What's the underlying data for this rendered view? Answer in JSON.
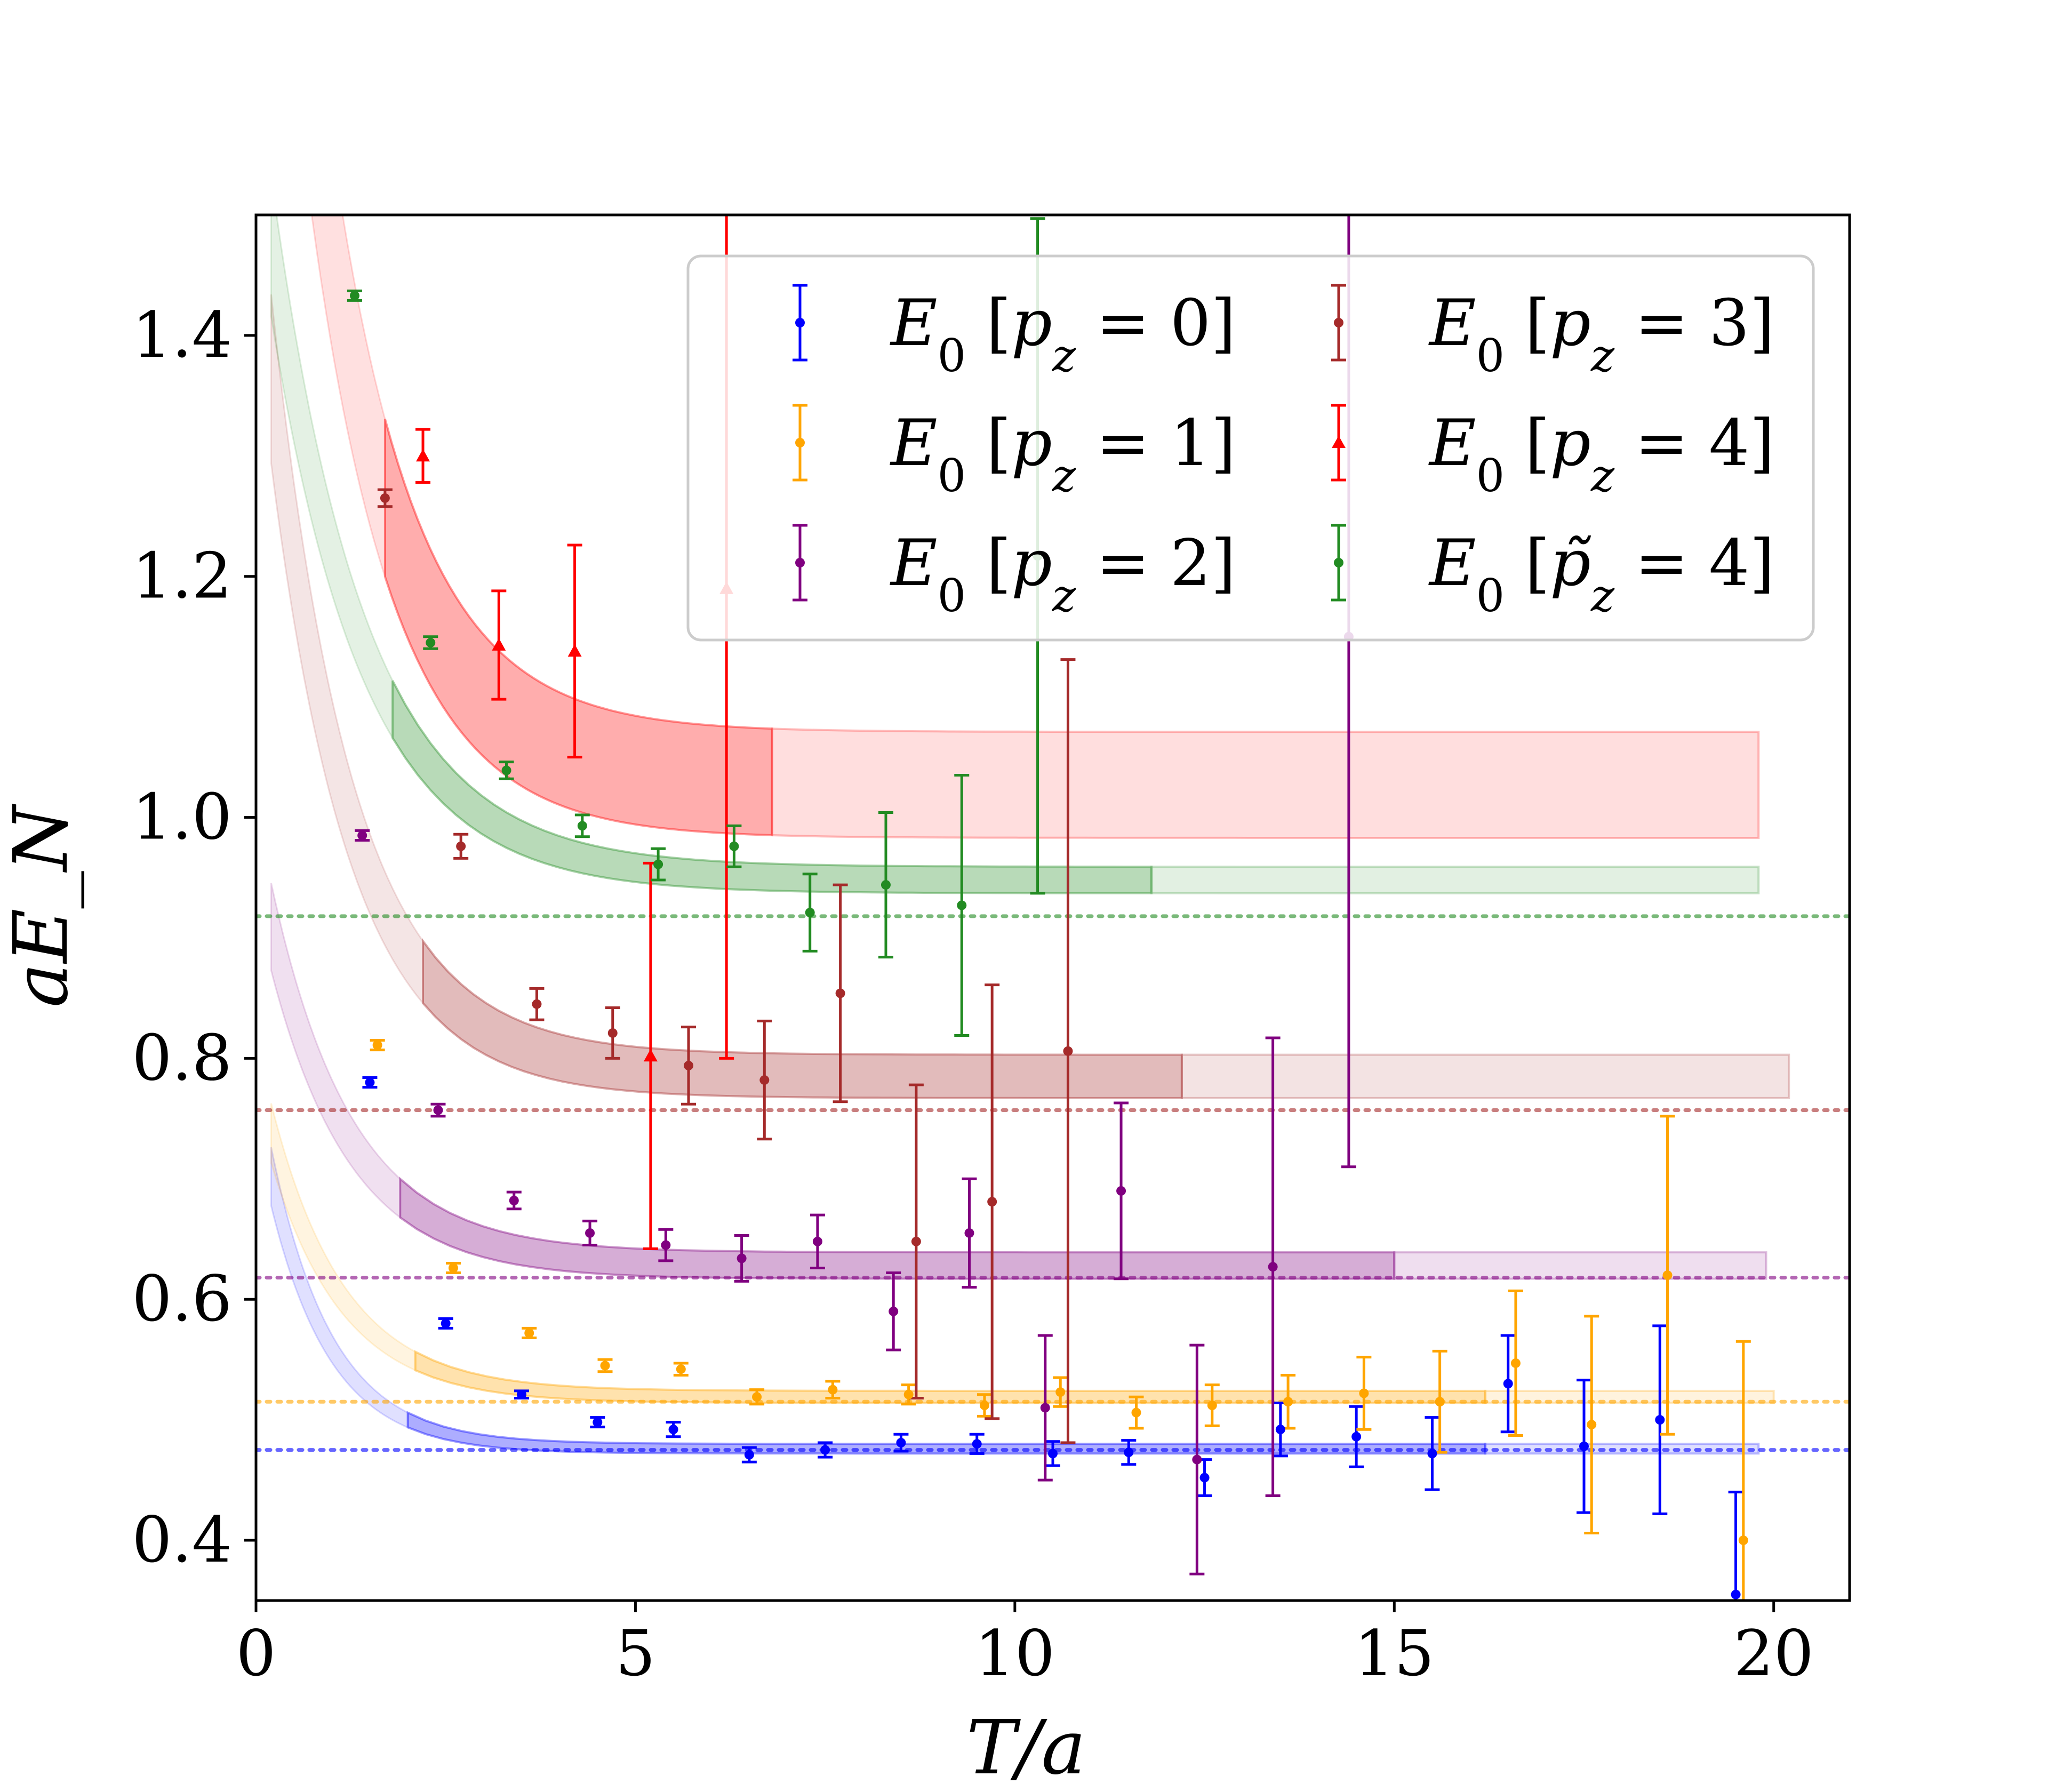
{
  "chart_data": {
    "type": "scatter",
    "title": "",
    "xlabel": "T/a",
    "ylabel": "aE_N",
    "xlim": [
      0,
      21
    ],
    "ylim": [
      0.35,
      1.5
    ],
    "xticks": [
      0,
      5,
      10,
      15,
      20
    ],
    "yticks": [
      0.4,
      0.6,
      0.8,
      1.0,
      1.2,
      1.4
    ],
    "xtick_labels": [
      "0",
      "5",
      "10",
      "15",
      "20"
    ],
    "ytick_labels": [
      "0.4",
      "0.6",
      "0.8",
      "1.0",
      "1.2",
      "1.4"
    ],
    "legend_position": "top-right",
    "legend_columns": 2,
    "series": [
      {
        "name": "pz0",
        "label_base": "E",
        "label_sub": "0",
        "label_momentum": "p",
        "label_msub": "z",
        "label_value": "= 0",
        "color": "#0000ff",
        "marker": "circle",
        "x": [
          1.5,
          2.5,
          3.5,
          4.5,
          5.5,
          6.5,
          7.5,
          8.5,
          9.5,
          10.5,
          11.5,
          12.5,
          13.5,
          14.5,
          15.5,
          16.5,
          17.5,
          18.5,
          19.5
        ],
        "y": [
          0.78,
          0.58,
          0.521,
          0.498,
          0.492,
          0.471,
          0.475,
          0.481,
          0.48,
          0.472,
          0.473,
          0.452,
          0.492,
          0.486,
          0.472,
          0.53,
          0.478,
          0.5,
          0.355
        ],
        "err": [
          0.004,
          0.004,
          0.003,
          0.004,
          0.006,
          0.006,
          0.006,
          0.007,
          0.008,
          0.01,
          0.01,
          0.015,
          0.022,
          0.025,
          0.03,
          0.04,
          0.055,
          0.078,
          0.085
        ],
        "plateau": 0.475,
        "band": {
          "E": 0.476,
          "A": 0.29,
          "k": 1.25,
          "w": 0.004,
          "x0": 2.0,
          "xd": 16.2,
          "x1": 19.8
        }
      },
      {
        "name": "pz1",
        "label_base": "E",
        "label_sub": "0",
        "label_momentum": "p",
        "label_msub": "z",
        "label_value": "= 1",
        "color": "#ffa500",
        "marker": "circle",
        "x": [
          1.6,
          2.6,
          3.6,
          4.6,
          5.6,
          6.6,
          7.6,
          8.6,
          9.6,
          10.6,
          11.6,
          12.6,
          13.6,
          14.6,
          15.6,
          16.6,
          17.6,
          18.6,
          19.6
        ],
        "y": [
          0.811,
          0.626,
          0.572,
          0.545,
          0.542,
          0.519,
          0.525,
          0.521,
          0.512,
          0.523,
          0.506,
          0.512,
          0.515,
          0.522,
          0.515,
          0.547,
          0.496,
          0.62,
          0.4
        ],
        "err": [
          0.004,
          0.004,
          0.004,
          0.005,
          0.005,
          0.006,
          0.007,
          0.008,
          0.009,
          0.012,
          0.013,
          0.017,
          0.022,
          0.03,
          0.042,
          0.06,
          0.09,
          0.132,
          0.165
        ],
        "plateau": 0.515,
        "band": {
          "E": 0.519,
          "A": 0.27,
          "k": 1.05,
          "w": 0.005,
          "x0": 2.1,
          "xd": 16.2,
          "x1": 20.0
        }
      },
      {
        "name": "pz2",
        "label_base": "E",
        "label_sub": "0",
        "label_momentum": "p",
        "label_msub": "z",
        "label_value": "= 2",
        "color": "#800080",
        "marker": "circle",
        "x": [
          1.4,
          2.4,
          3.4,
          4.4,
          5.4,
          6.4,
          7.4,
          8.4,
          9.4,
          10.4,
          11.4,
          12.4,
          13.4,
          14.4
        ],
        "y": [
          0.985,
          0.757,
          0.682,
          0.655,
          0.645,
          0.634,
          0.648,
          0.59,
          0.655,
          0.51,
          0.69,
          0.467,
          0.627,
          1.15
        ],
        "err": [
          0.004,
          0.005,
          0.007,
          0.01,
          0.013,
          0.019,
          0.022,
          0.032,
          0.045,
          0.06,
          0.073,
          0.095,
          0.19,
          0.44
        ],
        "plateau": 0.618,
        "band": {
          "E": 0.628,
          "A": 0.34,
          "k": 0.95,
          "w": 0.011,
          "x0": 1.9,
          "xd": 15.0,
          "x1": 19.9
        }
      },
      {
        "name": "pz3",
        "label_base": "E",
        "label_sub": "0",
        "label_momentum": "p",
        "label_msub": "z",
        "label_value": "= 3",
        "color": "#a52a2a",
        "marker": "circle",
        "x": [
          1.7,
          2.7,
          3.7,
          4.7,
          5.7,
          6.7,
          7.7,
          8.7,
          9.7,
          10.7
        ],
        "y": [
          1.265,
          0.976,
          0.845,
          0.821,
          0.794,
          0.782,
          0.854,
          0.648,
          0.681,
          0.806
        ],
        "err": [
          0.007,
          0.01,
          0.013,
          0.021,
          0.032,
          0.049,
          0.09,
          0.13,
          0.18,
          0.325
        ],
        "plateau": 0.757,
        "band": {
          "E": 0.785,
          "A": 0.7,
          "k": 0.95,
          "w": 0.018,
          "x0": 2.2,
          "xd": 12.2,
          "x1": 20.2
        }
      },
      {
        "name": "pz4",
        "label_base": "E",
        "label_sub": "0",
        "label_momentum": "p",
        "label_msub": "z",
        "label_value": "= 4",
        "color": "#ff0000",
        "marker": "triangle",
        "x": [
          2.2,
          3.2,
          4.2,
          5.2,
          6.2
        ],
        "y": [
          1.3,
          1.143,
          1.138,
          0.802,
          1.19
        ],
        "err": [
          0.022,
          0.045,
          0.088,
          0.16,
          0.39
        ],
        "plateau": null,
        "band": {
          "E": 1.027,
          "A": 1.1,
          "k": 0.9,
          "w": 0.044,
          "x0": 1.7,
          "xd": 6.8,
          "x1": 19.8
        }
      },
      {
        "name": "pz4tilde",
        "label_base": "E",
        "label_sub": "0",
        "label_momentum": "p̃",
        "label_msub": "z",
        "label_value": "= 4",
        "color": "#228b22",
        "marker": "circle",
        "x": [
          1.3,
          2.3,
          3.3,
          4.3,
          5.3,
          6.3,
          7.3,
          8.3,
          9.3,
          10.3
        ],
        "y": [
          1.433,
          1.145,
          1.039,
          0.993,
          0.961,
          0.976,
          0.921,
          0.944,
          0.927,
          1.217
        ],
        "err": [
          0.004,
          0.005,
          0.007,
          0.009,
          0.013,
          0.017,
          0.032,
          0.06,
          0.108,
          0.28
        ],
        "plateau": 0.918,
        "band": {
          "E": 0.948,
          "A": 0.62,
          "k": 0.82,
          "w": 0.011,
          "x0": 1.8,
          "xd": 11.8,
          "x1": 19.8
        }
      }
    ]
  }
}
